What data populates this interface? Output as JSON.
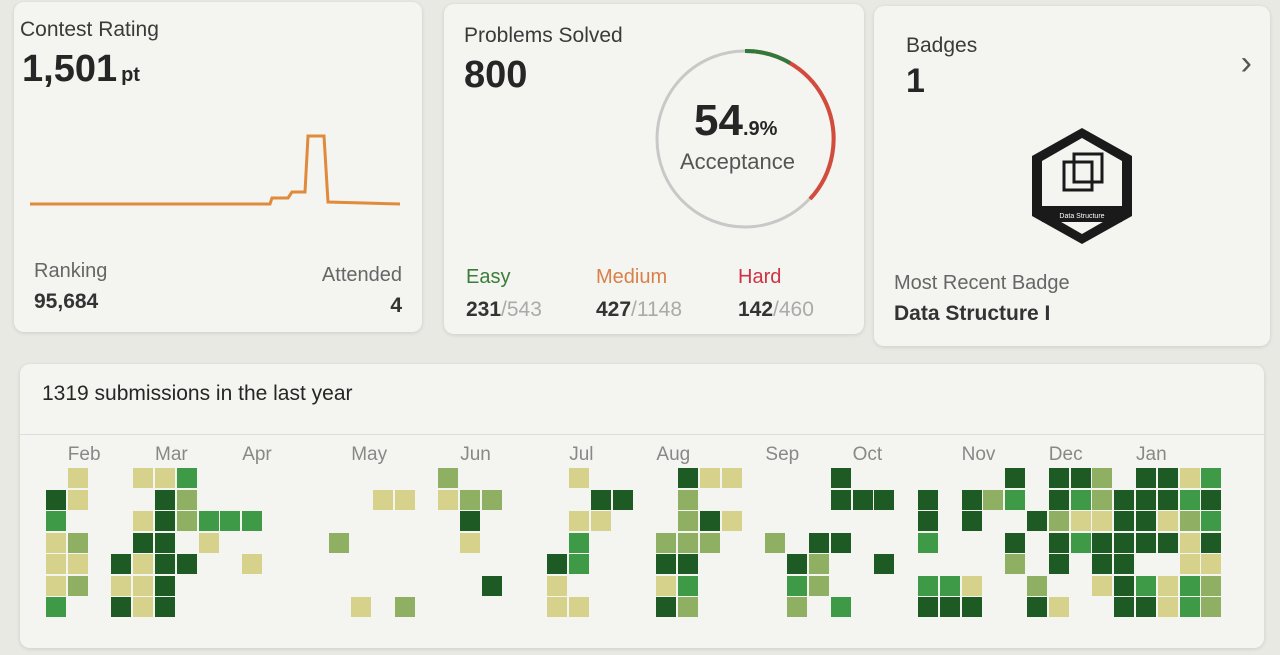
{
  "contest": {
    "title": "Contest Rating",
    "rating": "1,501",
    "unit": "pt",
    "ranking_label": "Ranking",
    "ranking": "95,684",
    "attended_label": "Attended",
    "attended": "4",
    "line_color": "#e08a3c"
  },
  "problems": {
    "title": "Problems Solved",
    "solved": "800",
    "acceptance_int": "54",
    "acceptance_dec": ".9%",
    "acceptance_label": "Acceptance",
    "difficulties": [
      {
        "label": "Easy",
        "solved": "231",
        "total": "/543",
        "color": "#3a7d3a"
      },
      {
        "label": "Medium",
        "solved": "427",
        "total": "/1148",
        "color": "#d9804a"
      },
      {
        "label": "Hard",
        "solved": "142",
        "total": "/460",
        "color": "#cc3344"
      }
    ]
  },
  "badges": {
    "title": "Badges",
    "count": "1",
    "badge_name": "Data Structure",
    "recent_label": "Most Recent Badge",
    "recent": "Data Structure I"
  },
  "activity": {
    "title": "1319 submissions in the last year",
    "months": [
      "Feb",
      "Mar",
      "Apr",
      "May",
      "Jun",
      "Jul",
      "Aug",
      "Sep",
      "Oct",
      "Nov",
      "Dec",
      "Jan"
    ],
    "level_colors": [
      "transparent",
      "#d6d28c",
      "#8fb062",
      "#3f9a48",
      "#1d5a24"
    ],
    "weeks": [
      "0431113",
      "1102120",
      "0000000",
      "0000414",
      "1014111",
      "1444444",
      "3220400",
      "0031000",
      "0030000",
      "0030100",
      "0000000",
      "0000000",
      "0000000",
      "0002000",
      "0000001",
      "0100000",
      "0100002",
      "0000000",
      "2100000",
      "0241000",
      "0200040",
      "0000000",
      "0000000",
      "0000411",
      "1013301",
      "0410000",
      "0400000",
      "0000000",
      "0002414",
      "4222432",
      "1042000",
      "1010000",
      "0000000",
      "0002000",
      "0000432",
      "0004220",
      "4404003",
      "0400000",
      "0400400",
      "0000000",
      "0443034",
      "0000034",
      "0440014",
      "0200000",
      "4304200",
      "0040024",
      "4424401",
      "4313000",
      "2214410",
      "0444444",
      "4444034",
      "4414011",
      "1321133",
      "3434122"
    ]
  }
}
